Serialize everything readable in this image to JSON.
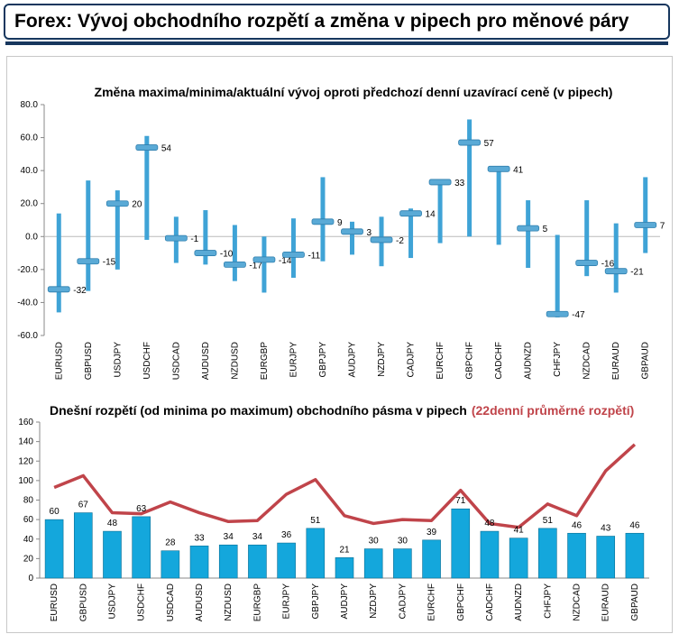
{
  "header": {
    "title": "Forex: Vývoj obchodního rozpětí a změna v pipech pro měnové páry"
  },
  "chart_data": [
    {
      "type": "bar",
      "title": "Změna maxima/minima/aktuální vývoj oproti předchozí denní uzavírací ceně (v pipech)",
      "categories": [
        "EURUSD",
        "GBPUSD",
        "USDJPY",
        "USDCHF",
        "USDCAD",
        "AUDUSD",
        "NZDUSD",
        "EURGBP",
        "EURJPY",
        "GBPJPY",
        "AUDJPY",
        "NZDJPY",
        "CADJPY",
        "EURCHF",
        "GBPCHF",
        "CADCHF",
        "AUDNZD",
        "CHFJPY",
        "NZDCAD",
        "EURAUD",
        "GBPAUD"
      ],
      "series": [
        {
          "values_high": [
            14,
            34,
            28,
            61,
            12,
            16,
            7,
            0,
            11,
            36,
            9,
            12,
            17,
            34,
            71,
            42,
            22,
            1,
            22,
            8,
            36
          ]
        },
        {
          "values_low": [
            -46,
            -33,
            -20,
            -2,
            -16,
            -17,
            -27,
            -34,
            -25,
            -15,
            -11,
            -18,
            -13,
            -4,
            0,
            -5,
            -19,
            -49,
            -24,
            -34,
            -10
          ]
        },
        {
          "values_current": [
            -32,
            -15,
            20,
            54,
            -1,
            -10,
            -17,
            -14,
            -11,
            9,
            3,
            -2,
            14,
            33,
            57,
            41,
            5,
            -47,
            -16,
            -21,
            7
          ]
        }
      ],
      "data_labels": [
        "-32",
        "-15",
        "20",
        "54",
        "-1",
        "-10",
        "-17",
        "-14",
        "-11",
        "9",
        "3",
        "-2",
        "14",
        "33",
        "57",
        "41",
        "5",
        "-47",
        "-16",
        "-21",
        "7"
      ],
      "yticks": [
        "80.0",
        "60.0",
        "40.0",
        "20.0",
        "0.0",
        "-20.0",
        "-40.0",
        "-60.0"
      ],
      "ylim": [
        -60,
        80
      ],
      "grid": false,
      "colors": {
        "bar": "#3fa3d6",
        "marker": "#5aaad6"
      }
    },
    {
      "type": "bar",
      "title_main": "Dnešní rozpětí (od minima po maximum) obchodního pásma v pipech",
      "title_highlight": "(22denní průměrné rozpětí)",
      "categories": [
        "EURUSD",
        "GBPUSD",
        "USDJPY",
        "USDCHF",
        "USDCAD",
        "AUDUSD",
        "NZDUSD",
        "EURGBP",
        "EURJPY",
        "GBPJPY",
        "AUDJPY",
        "NZDJPY",
        "CADJPY",
        "EURCHF",
        "GBPCHF",
        "CADCHF",
        "AUDNZD",
        "CHFJPY",
        "NZDCAD",
        "EURAUD",
        "GBPAUD"
      ],
      "series": [
        {
          "type": "bar",
          "values": [
            60,
            67,
            48,
            63,
            28,
            33,
            34,
            34,
            36,
            51,
            21,
            30,
            30,
            39,
            71,
            48,
            41,
            51,
            46,
            43,
            46
          ]
        },
        {
          "type": "line",
          "values": [
            93,
            105,
            67,
            66,
            78,
            67,
            58,
            59,
            86,
            101,
            64,
            56,
            60,
            59,
            90,
            56,
            52,
            76,
            64,
            110,
            137
          ]
        }
      ],
      "data_labels": [
        "60",
        "67",
        "48",
        "63",
        "28",
        "33",
        "34",
        "34",
        "36",
        "51",
        "21",
        "30",
        "30",
        "39",
        "71",
        "48",
        "41",
        "51",
        "46",
        "43",
        "46"
      ],
      "yticks": [
        "160",
        "140",
        "120",
        "100",
        "80",
        "60",
        "40",
        "20",
        "0"
      ],
      "ylim": [
        0,
        160
      ],
      "grid": false,
      "colors": {
        "bar": "#14a7dc",
        "line": "#c0444a",
        "highlight_text": "#c0444a"
      }
    }
  ]
}
